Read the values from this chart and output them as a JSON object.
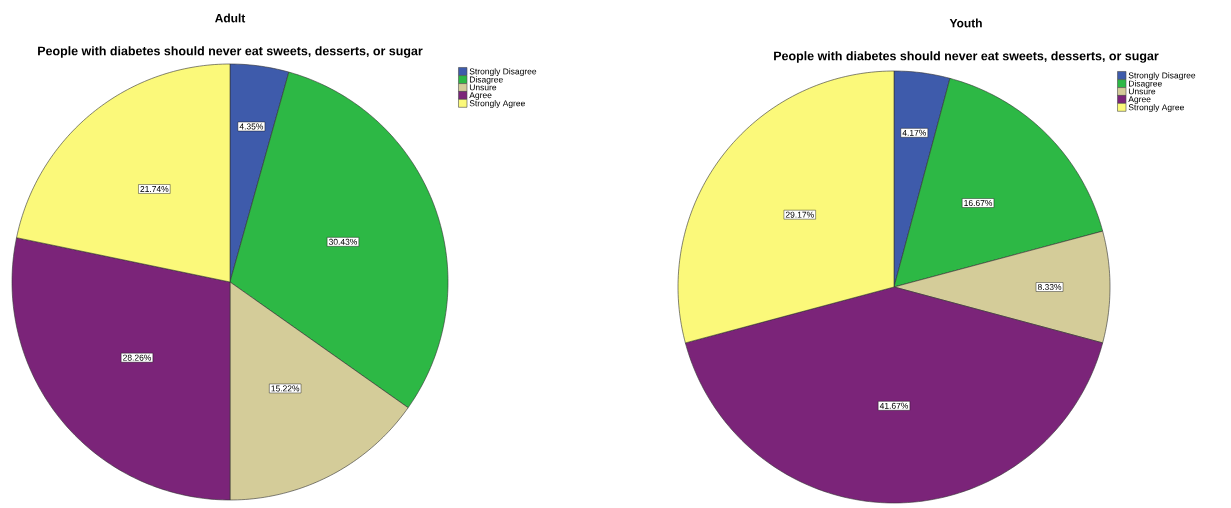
{
  "chart_data": [
    {
      "type": "pie",
      "title": "Adult",
      "subtitle": "People with diabetes should never eat sweets, desserts, or sugar",
      "categories": [
        "Strongly Disagree",
        "Disagree",
        "Unsure",
        "Agree",
        "Strongly Agree"
      ],
      "values": [
        4.35,
        30.43,
        15.22,
        28.26,
        21.74
      ],
      "colors": [
        "#3e5bab",
        "#2db845",
        "#d4cc99",
        "#7b2479",
        "#fbf97a"
      ],
      "value_labels": [
        "4.35%",
        "30.43%",
        "15.22%",
        "28.26%",
        "21.74%"
      ],
      "legend": "top right"
    },
    {
      "type": "pie",
      "title": "Youth",
      "subtitle": "People with diabetes should never eat sweets, desserts, or sugar",
      "categories": [
        "Strongly Disagree",
        "Disagree",
        "Unsure",
        "Agree",
        "Strongly Agree"
      ],
      "values": [
        4.17,
        16.67,
        8.33,
        41.67,
        29.17
      ],
      "colors": [
        "#3e5bab",
        "#2db845",
        "#d4cc99",
        "#7b2479",
        "#fbf97a"
      ],
      "value_labels": [
        "4.17%",
        "16.67%",
        "8.33%",
        "41.67%",
        "29.17%"
      ],
      "legend": "top right"
    }
  ]
}
